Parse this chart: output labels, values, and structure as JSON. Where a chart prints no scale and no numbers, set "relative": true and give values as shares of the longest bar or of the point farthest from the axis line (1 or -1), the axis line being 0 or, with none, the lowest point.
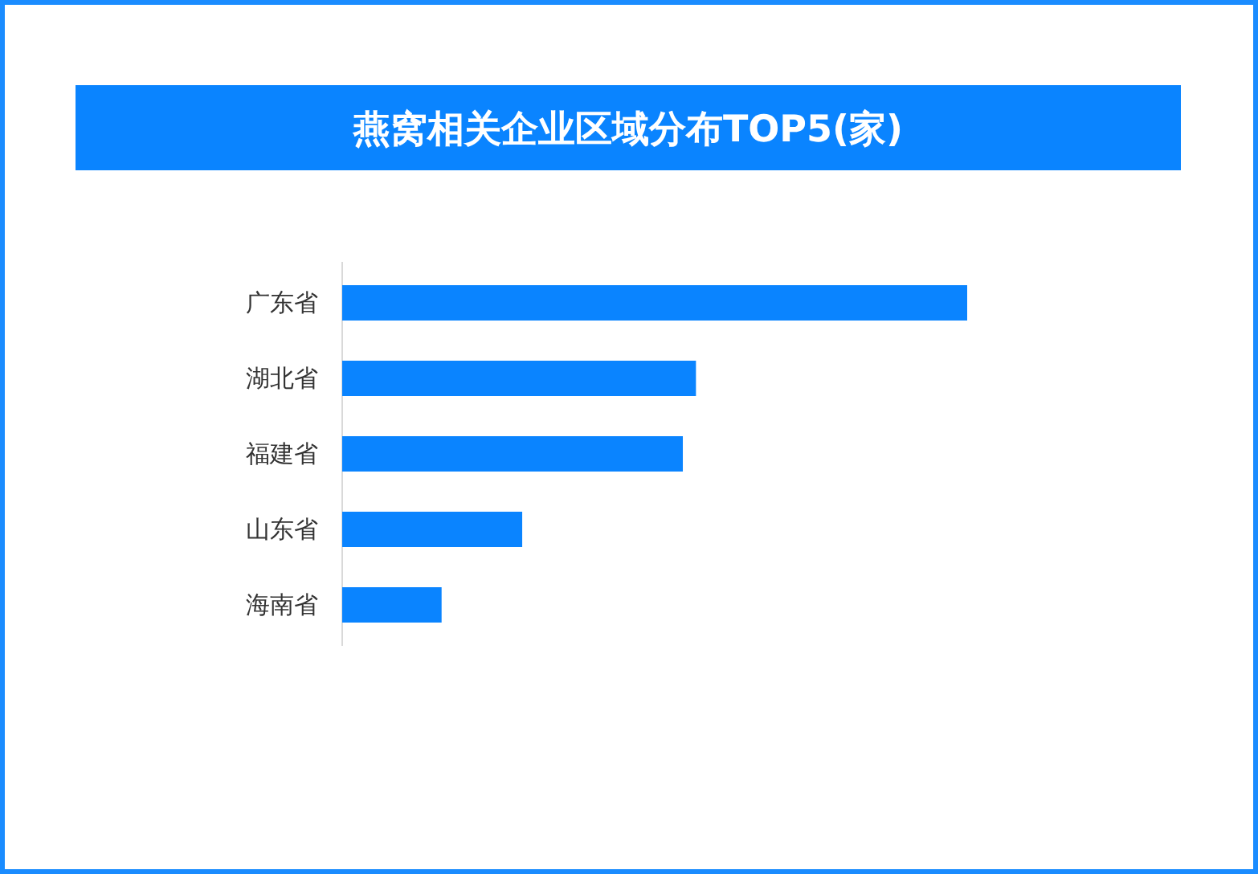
{
  "chart_data": {
    "type": "bar",
    "orientation": "horizontal",
    "relative": true,
    "title": "燕窝相关企业区域分布TOP5(家)",
    "categories": [
      "广东省",
      "湖北省",
      "福建省",
      "山东省",
      "海南省"
    ],
    "values": [
      1,
      0.566,
      0.545,
      0.288,
      0.159
    ],
    "color": "#0a84ff"
  }
}
